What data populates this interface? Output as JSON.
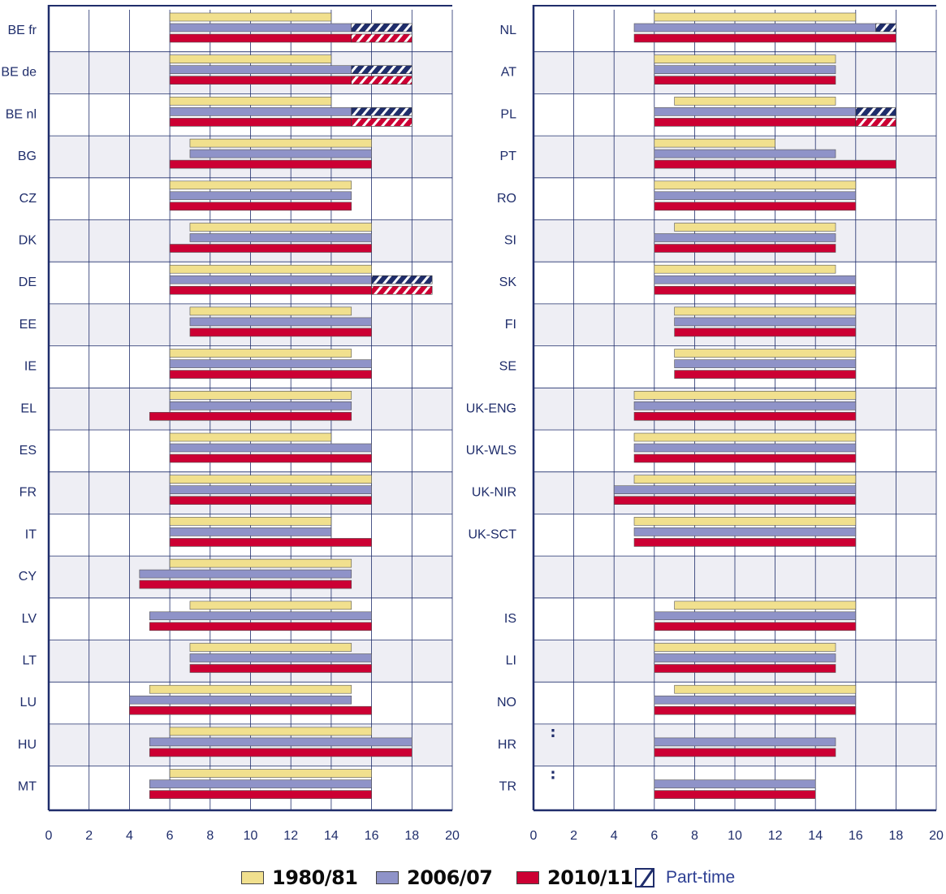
{
  "colors": {
    "s1980": "#f1e08e",
    "s2006": "#8f93c8",
    "s2010": "#cc0033",
    "axis": "#1f2d6b",
    "grid": "#1f2d6b",
    "label": "#1f2d6b",
    "band": "#eeeef4"
  },
  "legend": {
    "s1980": "1980/81",
    "s2006": "2006/07",
    "s2010": "2010/11",
    "part_time": "Part-time"
  },
  "chart_data": [
    {
      "type": "bar",
      "orientation": "horizontal-range",
      "xlim": [
        0,
        20
      ],
      "xticks": [
        "0",
        "2",
        "4",
        "6",
        "8",
        "10",
        "12",
        "14",
        "16",
        "18",
        "20"
      ],
      "grid": true,
      "rows": [
        {
          "label": "BE fr",
          "s1980": [
            6,
            14
          ],
          "s2006": [
            6,
            15
          ],
          "s2006_pt": [
            15,
            18
          ],
          "s2010": [
            6,
            15
          ],
          "s2010_pt": [
            15,
            18
          ]
        },
        {
          "label": "BE de",
          "s1980": [
            6,
            14
          ],
          "s2006": [
            6,
            15
          ],
          "s2006_pt": [
            15,
            18
          ],
          "s2010": [
            6,
            15
          ],
          "s2010_pt": [
            15,
            18
          ]
        },
        {
          "label": "BE nl",
          "s1980": [
            6,
            14
          ],
          "s2006": [
            6,
            15
          ],
          "s2006_pt": [
            15,
            18
          ],
          "s2010": [
            6,
            15
          ],
          "s2010_pt": [
            15,
            18
          ]
        },
        {
          "label": "BG",
          "s1980": [
            7,
            16
          ],
          "s2006": [
            7,
            16
          ],
          "s2010": [
            6,
            16
          ]
        },
        {
          "label": "CZ",
          "s1980": [
            6,
            15
          ],
          "s2006": [
            6,
            15
          ],
          "s2010": [
            6,
            15
          ]
        },
        {
          "label": "DK",
          "s1980": [
            7,
            16
          ],
          "s2006": [
            7,
            16
          ],
          "s2010": [
            6,
            16
          ]
        },
        {
          "label": "DE",
          "s1980": [
            6,
            16
          ],
          "s2006": [
            6,
            16
          ],
          "s2006_pt": [
            16,
            19
          ],
          "s2010": [
            6,
            16
          ],
          "s2010_pt": [
            16,
            19
          ]
        },
        {
          "label": "EE",
          "s1980": [
            7,
            15
          ],
          "s2006": [
            7,
            16
          ],
          "s2010": [
            7,
            16
          ]
        },
        {
          "label": "IE",
          "s1980": [
            6,
            15
          ],
          "s2006": [
            6,
            16
          ],
          "s2010": [
            6,
            16
          ]
        },
        {
          "label": "EL",
          "s1980": [
            6,
            15
          ],
          "s2006": [
            6,
            15
          ],
          "s2010": [
            5,
            15
          ]
        },
        {
          "label": "ES",
          "s1980": [
            6,
            14
          ],
          "s2006": [
            6,
            16
          ],
          "s2010": [
            6,
            16
          ]
        },
        {
          "label": "FR",
          "s1980": [
            6,
            16
          ],
          "s2006": [
            6,
            16
          ],
          "s2010": [
            6,
            16
          ]
        },
        {
          "label": "IT",
          "s1980": [
            6,
            14
          ],
          "s2006": [
            6,
            14
          ],
          "s2010": [
            6,
            16
          ]
        },
        {
          "label": "CY",
          "s1980": [
            6,
            15
          ],
          "s2006": [
            4.5,
            15
          ],
          "s2010": [
            4.5,
            15
          ]
        },
        {
          "label": "LV",
          "s1980": [
            7,
            15
          ],
          "s2006": [
            5,
            16
          ],
          "s2010": [
            5,
            16
          ]
        },
        {
          "label": "LT",
          "s1980": [
            7,
            15
          ],
          "s2006": [
            7,
            16
          ],
          "s2010": [
            7,
            16
          ]
        },
        {
          "label": "LU",
          "s1980": [
            5,
            15
          ],
          "s2006": [
            4,
            15
          ],
          "s2010": [
            4,
            16
          ]
        },
        {
          "label": "HU",
          "s1980": [
            6,
            16
          ],
          "s2006": [
            5,
            18
          ],
          "s2010": [
            5,
            18
          ]
        },
        {
          "label": "MT",
          "s1980": [
            6,
            16
          ],
          "s2006": [
            5,
            16
          ],
          "s2010": [
            5,
            16
          ]
        }
      ]
    },
    {
      "type": "bar",
      "orientation": "horizontal-range",
      "xlim": [
        0,
        20
      ],
      "xticks": [
        "0",
        "2",
        "4",
        "6",
        "8",
        "10",
        "12",
        "14",
        "16",
        "18",
        "20"
      ],
      "grid": true,
      "rows": [
        {
          "label": "NL",
          "s1980": [
            6,
            16
          ],
          "s2006": [
            5,
            17
          ],
          "s2006_pt": [
            17,
            18
          ],
          "s2010": [
            5,
            18
          ]
        },
        {
          "label": "AT",
          "s1980": [
            6,
            15
          ],
          "s2006": [
            6,
            15
          ],
          "s2010": [
            6,
            15
          ]
        },
        {
          "label": "PL",
          "s1980": [
            7,
            15
          ],
          "s2006": [
            6,
            16
          ],
          "s2006_pt": [
            16,
            18
          ],
          "s2010": [
            6,
            16
          ],
          "s2010_pt": [
            16,
            18
          ]
        },
        {
          "label": "PT",
          "s1980": [
            6,
            12
          ],
          "s2006": [
            6,
            15
          ],
          "s2010": [
            6,
            18
          ]
        },
        {
          "label": "RO",
          "s1980": [
            6,
            16
          ],
          "s2006": [
            6,
            16
          ],
          "s2010": [
            6,
            16
          ]
        },
        {
          "label": "SI",
          "s1980": [
            7,
            15
          ],
          "s2006": [
            6,
            15
          ],
          "s2010": [
            6,
            15
          ]
        },
        {
          "label": "SK",
          "s1980": [
            6,
            15
          ],
          "s2006": [
            6,
            16
          ],
          "s2010": [
            6,
            16
          ]
        },
        {
          "label": "FI",
          "s1980": [
            7,
            16
          ],
          "s2006": [
            7,
            16
          ],
          "s2010": [
            7,
            16
          ]
        },
        {
          "label": "SE",
          "s1980": [
            7,
            16
          ],
          "s2006": [
            7,
            16
          ],
          "s2010": [
            7,
            16
          ]
        },
        {
          "label": "UK-ENG",
          "s1980": [
            5,
            16
          ],
          "s2006": [
            5,
            16
          ],
          "s2010": [
            5,
            16
          ]
        },
        {
          "label": "UK-WLS",
          "s1980": [
            5,
            16
          ],
          "s2006": [
            5,
            16
          ],
          "s2010": [
            5,
            16
          ]
        },
        {
          "label": "UK-NIR",
          "s1980": [
            5,
            16
          ],
          "s2006": [
            4,
            16
          ],
          "s2010": [
            4,
            16
          ]
        },
        {
          "label": "UK-SCT",
          "s1980": [
            5,
            16
          ],
          "s2006": [
            5,
            16
          ],
          "s2010": [
            5,
            16
          ]
        },
        {
          "label": "",
          "blank": true
        },
        {
          "label": "IS",
          "s1980": [
            7,
            16
          ],
          "s2006": [
            6,
            16
          ],
          "s2010": [
            6,
            16
          ]
        },
        {
          "label": "LI",
          "s1980": [
            6,
            15
          ],
          "s2006": [
            6,
            15
          ],
          "s2010": [
            6,
            15
          ]
        },
        {
          "label": "NO",
          "s1980": [
            7,
            16
          ],
          "s2006": [
            6,
            16
          ],
          "s2010": [
            6,
            16
          ]
        },
        {
          "label": "HR",
          "s1980_missing": ":",
          "s2006": [
            6,
            15
          ],
          "s2010": [
            6,
            15
          ]
        },
        {
          "label": "TR",
          "s1980_missing": ":",
          "s2006": [
            6,
            14
          ],
          "s2010": [
            6,
            14
          ]
        }
      ]
    }
  ]
}
